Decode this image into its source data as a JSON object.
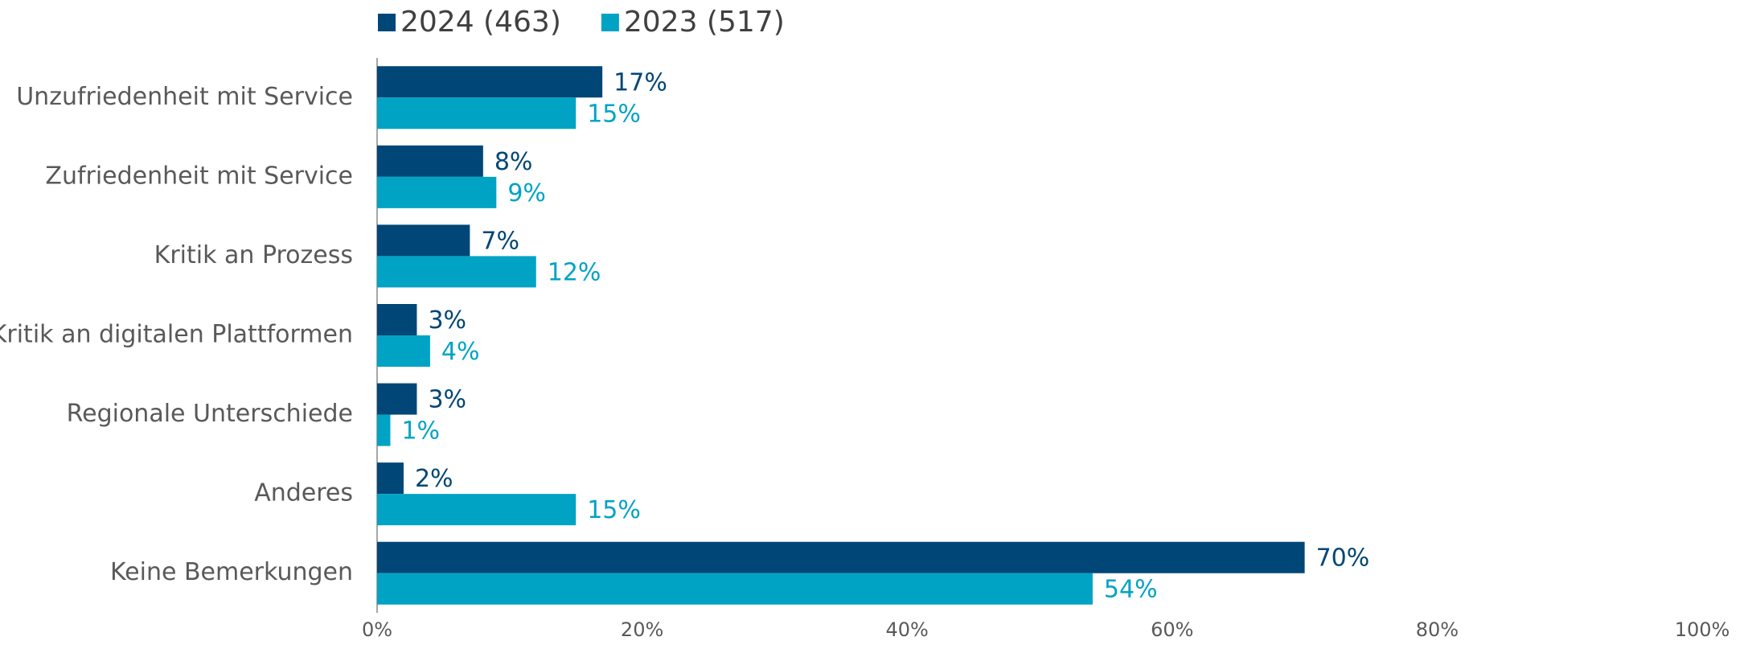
{
  "chart_data": {
    "type": "hbar",
    "categories": [
      "Unzufriedenheit mit Service",
      "Zufriedenheit mit Service",
      "Kritik an Prozess",
      "Kritik an digitalen Plattformen",
      "Regionale Unterschiede",
      "Anderes",
      "Keine Bemerkungen"
    ],
    "series": [
      {
        "name": "2024 (463)",
        "color": "#004677",
        "values": [
          17,
          8,
          7,
          3,
          3,
          2,
          70
        ],
        "value_labels": [
          "17%",
          "8%",
          "7%",
          "3%",
          "3%",
          "2%",
          "70%"
        ]
      },
      {
        "name": "2023 (517)",
        "color": "#00a3c4",
        "values": [
          15,
          9,
          12,
          4,
          1,
          15,
          54
        ],
        "value_labels": [
          "15%",
          "9%",
          "12%",
          "4%",
          "1%",
          "15%",
          "54%"
        ]
      }
    ],
    "xlim": [
      0,
      100
    ],
    "xticks": [
      {
        "value": 0,
        "label": "0%"
      },
      {
        "value": 20,
        "label": "20%"
      },
      {
        "value": 40,
        "label": "40%"
      },
      {
        "value": 60,
        "label": "60%"
      },
      {
        "value": 80,
        "label": "80%"
      },
      {
        "value": 100,
        "label": "100%"
      }
    ],
    "legend": "top"
  }
}
